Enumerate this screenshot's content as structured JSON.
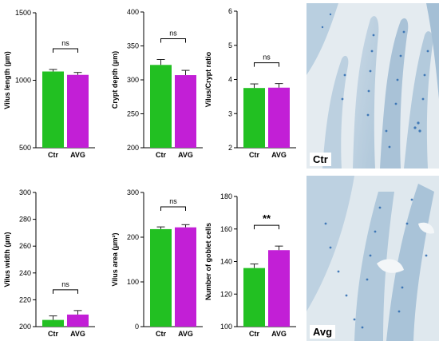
{
  "colors": {
    "ctr": "#22c022",
    "avg": "#c21fd6",
    "error": "#222222",
    "axis": "#000000"
  },
  "chart_data": [
    {
      "type": "bar",
      "categories": [
        "Ctr",
        "AVG"
      ],
      "ylabel": "Vilus length (µm)",
      "ylim": [
        500,
        1500
      ],
      "yticks": [
        "500",
        "1000",
        "1500"
      ],
      "yticks_values": [
        500,
        1000,
        1500
      ],
      "values": [
        1065,
        1040
      ],
      "errors": [
        15,
        18
      ],
      "significance": "ns"
    },
    {
      "type": "bar",
      "categories": [
        "Ctr",
        "AVG"
      ],
      "ylabel": "Crypt depth (µm)",
      "ylim": [
        200,
        400
      ],
      "yticks": [
        "200",
        "250",
        "300",
        "350",
        "400"
      ],
      "yticks_values": [
        200,
        250,
        300,
        350,
        400
      ],
      "values": [
        322,
        307
      ],
      "errors": [
        8,
        7
      ],
      "significance": "ns"
    },
    {
      "type": "bar",
      "categories": [
        "Ctr",
        "AVG"
      ],
      "ylabel": "Vilus/Crypt ratio",
      "ylim": [
        2,
        6
      ],
      "yticks": [
        "2",
        "3",
        "4",
        "5",
        "6"
      ],
      "yticks_values": [
        2,
        3,
        4,
        5,
        6
      ],
      "values": [
        3.75,
        3.76
      ],
      "errors": [
        0.12,
        0.12
      ],
      "significance": "ns"
    },
    {
      "type": "bar",
      "categories": [
        "Ctr",
        "AVG"
      ],
      "ylabel": "Vilus width (µm)",
      "ylim": [
        200,
        300
      ],
      "yticks": [
        "200",
        "220",
        "240",
        "260",
        "280",
        "300"
      ],
      "yticks_values": [
        200,
        220,
        240,
        260,
        280,
        300
      ],
      "values": [
        205,
        209
      ],
      "errors": [
        3,
        3
      ],
      "significance": "ns"
    },
    {
      "type": "bar",
      "categories": [
        "Ctr",
        "AVG"
      ],
      "ylabel": "Vilus area (µm²)",
      "ylim": [
        0,
        300
      ],
      "yticks": [
        "0",
        "100",
        "200",
        "300"
      ],
      "yticks_values": [
        0,
        100,
        200,
        300
      ],
      "values": [
        218,
        222
      ],
      "errors": [
        5,
        6
      ],
      "significance": "ns"
    },
    {
      "type": "bar",
      "categories": [
        "Ctr",
        "AVG"
      ],
      "ylabel": "Number of goblet cells",
      "ylim": [
        100,
        180
      ],
      "yticks": [
        "100",
        "120",
        "140",
        "160",
        "180"
      ],
      "yticks_values": [
        100,
        120,
        140,
        160,
        180
      ],
      "values": [
        136,
        147
      ],
      "errors": [
        2.5,
        2.5
      ],
      "significance": "**"
    }
  ],
  "histology": [
    {
      "label": "Ctr"
    },
    {
      "label": "Avg"
    }
  ]
}
